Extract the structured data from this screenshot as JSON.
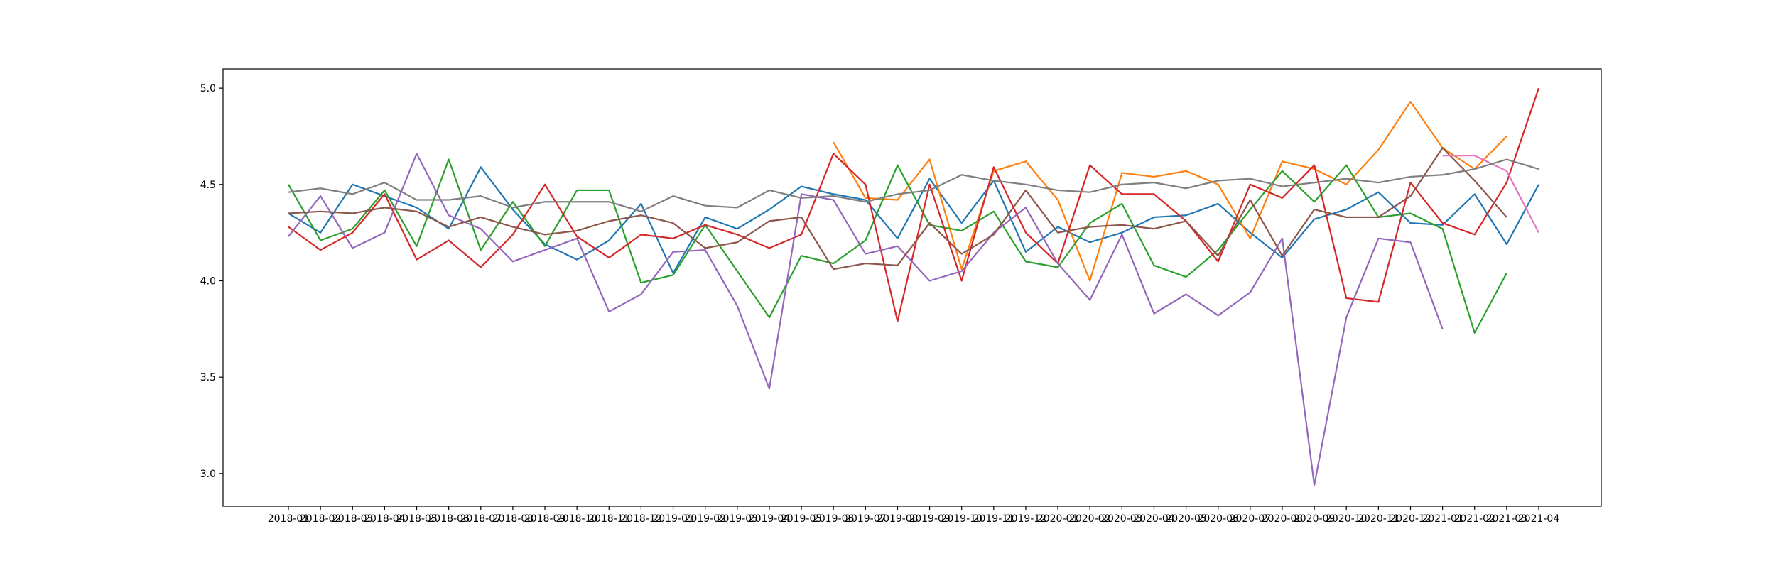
{
  "chart_data": {
    "type": "line",
    "title": "",
    "xlabel": "",
    "ylabel": "",
    "grid": false,
    "ylim": [
      2.83,
      5.1
    ],
    "yticks": [
      3.0,
      3.5,
      4.0,
      4.5,
      5.0
    ],
    "categories": [
      "2018-01",
      "2018-02",
      "2018-03",
      "2018-04",
      "2018-05",
      "2018-06",
      "2018-07",
      "2018-08",
      "2018-09",
      "2018-10",
      "2018-11",
      "2018-12",
      "2019-01",
      "2019-02",
      "2019-03",
      "2019-04",
      "2019-05",
      "2019-06",
      "2019-07",
      "2019-08",
      "2019-09",
      "2019-10",
      "2019-11",
      "2019-12",
      "2020-01",
      "2020-02",
      "2020-03",
      "2020-04",
      "2020-05",
      "2020-06",
      "2020-07",
      "2020-08",
      "2020-09",
      "2020-10",
      "2020-11",
      "2020-12",
      "2021-01",
      "2021-02",
      "2021-03",
      "2021-04"
    ],
    "series": [
      {
        "color": "#1f77b4",
        "values": [
          4.35,
          4.25,
          4.5,
          4.44,
          4.38,
          4.27,
          4.59,
          4.37,
          4.19,
          4.11,
          4.21,
          4.4,
          4.04,
          4.33,
          4.27,
          4.37,
          4.49,
          4.45,
          4.42,
          4.22,
          4.53,
          4.3,
          4.52,
          4.15,
          4.28,
          4.2,
          4.25,
          4.33,
          4.34,
          4.4,
          4.25,
          4.12,
          4.32,
          4.37,
          4.46,
          4.3,
          4.29,
          4.45,
          4.19,
          4.5
        ]
      },
      {
        "color": "#ff7f0e",
        "values": [
          null,
          null,
          null,
          null,
          null,
          null,
          null,
          null,
          null,
          null,
          null,
          null,
          null,
          null,
          null,
          null,
          null,
          4.72,
          4.43,
          4.42,
          4.63,
          4.06,
          4.57,
          4.62,
          4.42,
          4.0,
          4.56,
          4.54,
          4.57,
          4.5,
          4.22,
          4.62,
          4.58,
          4.5,
          4.68,
          4.93,
          4.69,
          4.58,
          4.75,
          null
        ]
      },
      {
        "color": "#2ca02c",
        "values": [
          4.5,
          4.21,
          4.27,
          4.47,
          4.18,
          4.63,
          4.16,
          4.41,
          4.18,
          4.47,
          4.47,
          3.99,
          4.03,
          4.29,
          4.05,
          3.81,
          4.13,
          4.09,
          4.21,
          4.6,
          4.29,
          4.26,
          4.36,
          4.1,
          4.07,
          4.3,
          4.4,
          4.08,
          4.02,
          4.16,
          4.37,
          4.57,
          4.41,
          4.6,
          4.33,
          4.35,
          4.27,
          3.73,
          4.04,
          null
        ]
      },
      {
        "color": "#d62728",
        "values": [
          4.28,
          4.16,
          4.25,
          4.45,
          4.11,
          4.21,
          4.07,
          4.24,
          4.5,
          4.23,
          4.12,
          4.24,
          4.22,
          4.29,
          4.24,
          4.17,
          4.24,
          4.66,
          4.5,
          3.79,
          4.5,
          4.0,
          4.59,
          4.25,
          4.09,
          4.6,
          4.45,
          4.45,
          4.31,
          4.1,
          4.5,
          4.43,
          4.6,
          3.91,
          3.89,
          4.51,
          4.3,
          4.24,
          4.51,
          5.0
        ]
      },
      {
        "color": "#9467bd",
        "values": [
          4.23,
          4.44,
          4.17,
          4.25,
          4.66,
          4.34,
          4.27,
          4.1,
          4.16,
          4.22,
          3.84,
          3.93,
          4.15,
          4.16,
          3.87,
          3.44,
          4.45,
          4.42,
          4.14,
          4.18,
          4.0,
          4.05,
          4.25,
          4.38,
          4.09,
          3.9,
          4.24,
          3.83,
          3.93,
          3.82,
          3.94,
          4.22,
          2.94,
          3.81,
          4.22,
          4.2,
          3.75,
          null,
          null,
          null
        ]
      },
      {
        "color": "#8c564b",
        "values": [
          4.35,
          4.36,
          4.35,
          4.38,
          4.36,
          4.28,
          4.33,
          4.28,
          4.24,
          4.26,
          4.31,
          4.34,
          4.3,
          4.17,
          4.2,
          4.31,
          4.33,
          4.06,
          4.09,
          4.08,
          4.3,
          4.14,
          4.24,
          4.47,
          4.25,
          4.28,
          4.29,
          4.27,
          4.31,
          4.13,
          4.42,
          4.13,
          4.37,
          4.33,
          4.33,
          4.44,
          4.69,
          4.52,
          4.33,
          null
        ]
      },
      {
        "color": "#e377c2",
        "values": [
          null,
          null,
          null,
          null,
          null,
          null,
          null,
          null,
          null,
          null,
          null,
          null,
          null,
          null,
          null,
          null,
          null,
          null,
          null,
          null,
          null,
          null,
          null,
          null,
          null,
          null,
          null,
          null,
          null,
          null,
          null,
          null,
          null,
          null,
          null,
          null,
          4.65,
          4.65,
          4.57,
          4.25
        ]
      },
      {
        "color": "#7f7f7f",
        "values": [
          4.46,
          4.48,
          4.45,
          4.51,
          4.42,
          4.42,
          4.44,
          4.38,
          4.41,
          4.41,
          4.41,
          4.36,
          4.44,
          4.39,
          4.38,
          4.47,
          4.43,
          4.44,
          4.41,
          4.45,
          4.47,
          4.55,
          4.52,
          4.5,
          4.47,
          4.46,
          4.5,
          4.51,
          4.48,
          4.52,
          4.53,
          4.49,
          4.51,
          4.53,
          4.51,
          4.54,
          4.55,
          4.58,
          4.63,
          4.58
        ]
      }
    ]
  }
}
